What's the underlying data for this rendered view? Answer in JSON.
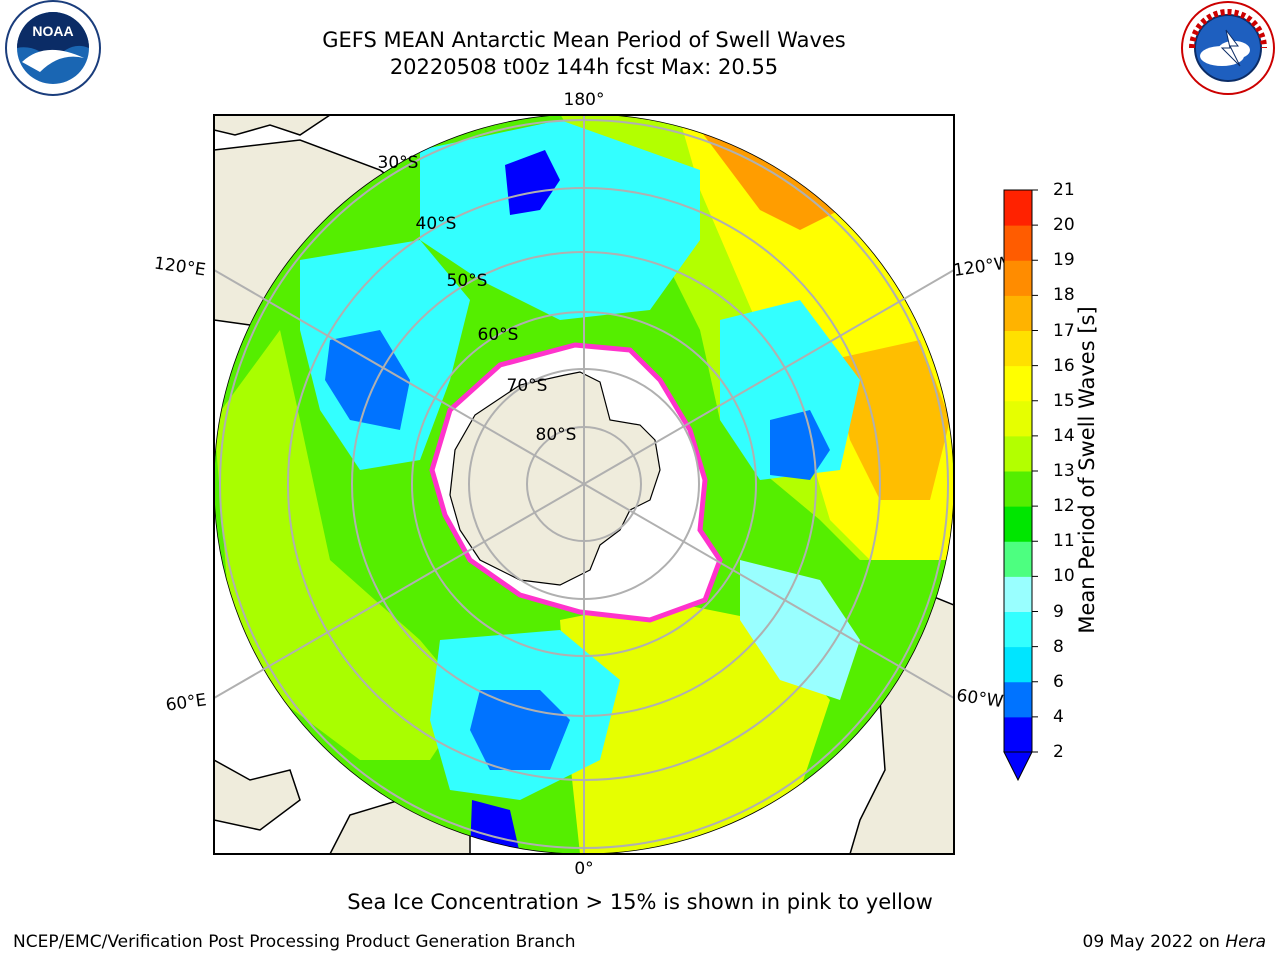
{
  "header": {
    "title_line_1": "GEFS MEAN Antarctic Mean Period of Swell Waves",
    "title_line_2": "20220508 t00z 144h fcst   Max: 20.55"
  },
  "logos": {
    "noaa": {
      "text": "NOAA",
      "ring_text": "NATIONAL OCEANIC AND ATMOSPHERIC ADMINISTRATION · U.S. DEPARTMENT OF COMMERCE"
    },
    "nws": {
      "ring_text": "NATIONAL WEATHER SERVICE"
    }
  },
  "map": {
    "projection": "south-polar-stereographic",
    "longitude_labels": {
      "top": "180°",
      "bottom": "0°",
      "left_upper": "120°E",
      "left_lower": "60°E",
      "right_upper": "120°W",
      "right_lower": "60°W"
    },
    "latitude_labels": [
      "30°S",
      "40°S",
      "50°S",
      "60°S",
      "70°S",
      "80°S"
    ],
    "colors": {
      "land": "#efecdc",
      "ice_edge": "#ff33cc",
      "grid": "#b0b0b0"
    }
  },
  "colorbar": {
    "label": "Mean Period of Swell Waves [s]",
    "ticks": [
      "2",
      "4",
      "6",
      "8",
      "9",
      "10",
      "11",
      "12",
      "13",
      "14",
      "15",
      "16",
      "17",
      "18",
      "19",
      "20",
      "21"
    ],
    "colors": [
      "#0000ff",
      "#0073ff",
      "#00e5ff",
      "#33ffff",
      "#99ffff",
      "#4dff80",
      "#00e600",
      "#55ee00",
      "#b3ff00",
      "#e6ff00",
      "#ffff00",
      "#ffe000",
      "#ffb300",
      "#ff8c00",
      "#ff5c00",
      "#ff2200"
    ],
    "under_color": "#0000ff"
  },
  "caption": "Sea Ice Concentration > 15% is shown in pink to yellow",
  "footer": {
    "left": "NCEP/EMC/Verification Post Processing Product Generation Branch",
    "right_date": "09 May 2022 on",
    "right_host": "Hera"
  }
}
